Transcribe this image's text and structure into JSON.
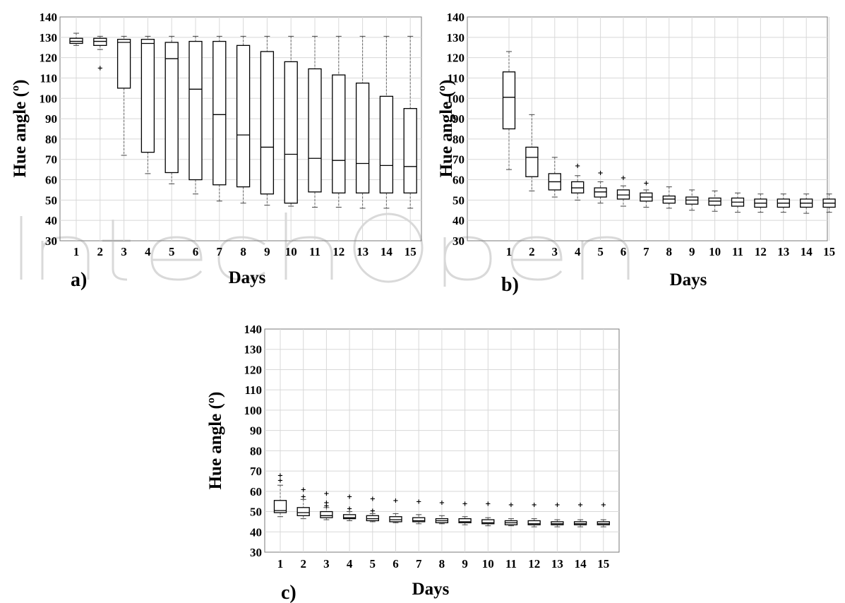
{
  "watermark": "IntechOpen",
  "chart_data": [
    {
      "type": "box",
      "panel_label": "a)",
      "xlabel": "Days",
      "ylabel": "Hue angle (º)",
      "ylim": [
        30,
        140
      ],
      "yticks": [
        30,
        40,
        50,
        60,
        70,
        80,
        90,
        100,
        110,
        120,
        130,
        140
      ],
      "grid": true,
      "categories": [
        "1",
        "2",
        "3",
        "4",
        "5",
        "6",
        "7",
        "8",
        "9",
        "10",
        "11",
        "12",
        "13",
        "14",
        "15"
      ],
      "boxes": [
        {
          "min": 126,
          "q1": 127,
          "median": 128,
          "q3": 129.5,
          "max": 132,
          "outliers": []
        },
        {
          "min": 124,
          "q1": 126,
          "median": 128,
          "q3": 129.5,
          "max": 130.5,
          "outliers": [
            115
          ]
        },
        {
          "min": 72,
          "q1": 105,
          "median": 127.5,
          "q3": 129,
          "max": 130.5,
          "outliers": []
        },
        {
          "min": 63,
          "q1": 73.5,
          "median": 127,
          "q3": 129,
          "max": 130.5,
          "outliers": []
        },
        {
          "min": 58,
          "q1": 63.5,
          "median": 119.5,
          "q3": 127.5,
          "max": 130.5,
          "outliers": []
        },
        {
          "min": 53,
          "q1": 60,
          "median": 104.5,
          "q3": 128,
          "max": 130.5,
          "outliers": []
        },
        {
          "min": 49.5,
          "q1": 57.5,
          "median": 92,
          "q3": 128,
          "max": 130.5,
          "outliers": []
        },
        {
          "min": 48.5,
          "q1": 56.5,
          "median": 82,
          "q3": 126,
          "max": 130.5,
          "outliers": []
        },
        {
          "min": 47.5,
          "q1": 53,
          "median": 76,
          "q3": 123,
          "max": 130.5,
          "outliers": []
        },
        {
          "min": 47,
          "q1": 48.5,
          "median": 72.5,
          "q3": 118,
          "max": 130.5,
          "outliers": []
        },
        {
          "min": 46.5,
          "q1": 54,
          "median": 70.5,
          "q3": 114.5,
          "max": 130.5,
          "outliers": []
        },
        {
          "min": 46.5,
          "q1": 53.5,
          "median": 69.5,
          "q3": 111.5,
          "max": 130.5,
          "outliers": []
        },
        {
          "min": 46,
          "q1": 53.5,
          "median": 68,
          "q3": 107.5,
          "max": 130.5,
          "outliers": []
        },
        {
          "min": 46,
          "q1": 53.5,
          "median": 67,
          "q3": 101,
          "max": 130.5,
          "outliers": []
        },
        {
          "min": 46,
          "q1": 53.5,
          "median": 66.5,
          "q3": 95,
          "max": 130.5,
          "outliers": []
        }
      ]
    },
    {
      "type": "box",
      "panel_label": "b)",
      "xlabel": "Days",
      "ylabel": "Hue angle (º)",
      "ylim": [
        30,
        140
      ],
      "yticks": [
        30,
        40,
        50,
        60,
        70,
        80,
        90,
        100,
        110,
        120,
        130,
        140
      ],
      "grid": true,
      "categories": [
        "1",
        "2",
        "3",
        "4",
        "5",
        "6",
        "7",
        "8",
        "9",
        "10",
        "11",
        "12",
        "13",
        "14",
        "15"
      ],
      "boxes": [
        {
          "min": 65,
          "q1": 85,
          "median": 100.5,
          "q3": 113,
          "max": 123,
          "outliers": []
        },
        {
          "min": 54.5,
          "q1": 61.5,
          "median": 71,
          "q3": 76,
          "max": 92,
          "outliers": []
        },
        {
          "min": 51.5,
          "q1": 55,
          "median": 59,
          "q3": 63,
          "max": 71,
          "outliers": []
        },
        {
          "min": 50,
          "q1": 53.5,
          "median": 56,
          "q3": 59,
          "max": 62,
          "outliers": [
            67
          ]
        },
        {
          "min": 48.5,
          "q1": 51.5,
          "median": 54,
          "q3": 56,
          "max": 59,
          "outliers": [
            63.5
          ]
        },
        {
          "min": 47,
          "q1": 50.5,
          "median": 52.5,
          "q3": 55,
          "max": 57,
          "outliers": [
            61
          ]
        },
        {
          "min": 46.5,
          "q1": 49.5,
          "median": 51.5,
          "q3": 53.5,
          "max": 55,
          "outliers": [
            58.5
          ]
        },
        {
          "min": 46,
          "q1": 48.5,
          "median": 50.5,
          "q3": 52,
          "max": 56.5,
          "outliers": []
        },
        {
          "min": 45,
          "q1": 48,
          "median": 50,
          "q3": 51.5,
          "max": 55,
          "outliers": []
        },
        {
          "min": 44.5,
          "q1": 47.5,
          "median": 49.5,
          "q3": 51,
          "max": 54.5,
          "outliers": []
        },
        {
          "min": 44,
          "q1": 47,
          "median": 49,
          "q3": 51,
          "max": 53.5,
          "outliers": []
        },
        {
          "min": 44,
          "q1": 46.5,
          "median": 48.5,
          "q3": 50.5,
          "max": 53,
          "outliers": []
        },
        {
          "min": 44,
          "q1": 46.5,
          "median": 48.5,
          "q3": 50.5,
          "max": 53,
          "outliers": []
        },
        {
          "min": 43.5,
          "q1": 46.5,
          "median": 48.5,
          "q3": 50.5,
          "max": 53,
          "outliers": []
        },
        {
          "min": 44,
          "q1": 46.5,
          "median": 48.5,
          "q3": 50.5,
          "max": 53,
          "outliers": []
        }
      ]
    },
    {
      "type": "box",
      "panel_label": "c)",
      "xlabel": "Days",
      "ylabel": "Hue angle (º)",
      "ylim": [
        30,
        140
      ],
      "yticks": [
        30,
        40,
        50,
        60,
        70,
        80,
        90,
        100,
        110,
        120,
        130,
        140
      ],
      "grid": true,
      "categories": [
        "1",
        "2",
        "3",
        "4",
        "5",
        "6",
        "7",
        "8",
        "9",
        "10",
        "11",
        "12",
        "13",
        "14",
        "15"
      ],
      "boxes": [
        {
          "min": 47.5,
          "q1": 49.5,
          "median": 50.5,
          "q3": 55.5,
          "max": 63,
          "outliers": [
            65.5,
            68
          ]
        },
        {
          "min": 46.5,
          "q1": 48,
          "median": 49.5,
          "q3": 52,
          "max": 56,
          "outliers": [
            57.5,
            61
          ]
        },
        {
          "min": 46,
          "q1": 47,
          "median": 48,
          "q3": 50,
          "max": 52,
          "outliers": [
            53,
            54.5,
            59
          ]
        },
        {
          "min": 45.5,
          "q1": 46.5,
          "median": 47,
          "q3": 48.5,
          "max": 50,
          "outliers": [
            51.5,
            57.5
          ]
        },
        {
          "min": 45,
          "q1": 45.5,
          "median": 46.5,
          "q3": 48,
          "max": 49,
          "outliers": [
            50.5,
            56.5
          ]
        },
        {
          "min": 44.5,
          "q1": 45,
          "median": 46,
          "q3": 47.5,
          "max": 49,
          "outliers": [
            55.5
          ]
        },
        {
          "min": 44,
          "q1": 45,
          "median": 45.5,
          "q3": 47,
          "max": 48.5,
          "outliers": [
            55
          ]
        },
        {
          "min": 44,
          "q1": 44.5,
          "median": 45.5,
          "q3": 46.5,
          "max": 48,
          "outliers": [
            54.5
          ]
        },
        {
          "min": 43.5,
          "q1": 44.5,
          "median": 45,
          "q3": 46.5,
          "max": 47.5,
          "outliers": [
            54
          ]
        },
        {
          "min": 43,
          "q1": 44,
          "median": 44.5,
          "q3": 46,
          "max": 47,
          "outliers": [
            54
          ]
        },
        {
          "min": 43,
          "q1": 43.5,
          "median": 44.5,
          "q3": 45.5,
          "max": 46.5,
          "outliers": [
            53.5
          ]
        },
        {
          "min": 42.5,
          "q1": 43.5,
          "median": 44,
          "q3": 45.5,
          "max": 46.5,
          "outliers": [
            53.5
          ]
        },
        {
          "min": 42.5,
          "q1": 43.5,
          "median": 44,
          "q3": 45,
          "max": 46,
          "outliers": [
            53.5
          ]
        },
        {
          "min": 42.5,
          "q1": 43.5,
          "median": 44,
          "q3": 45,
          "max": 46,
          "outliers": [
            53.5
          ]
        },
        {
          "min": 42.5,
          "q1": 43.5,
          "median": 44,
          "q3": 45,
          "max": 46,
          "outliers": [
            53.5
          ]
        }
      ]
    }
  ]
}
